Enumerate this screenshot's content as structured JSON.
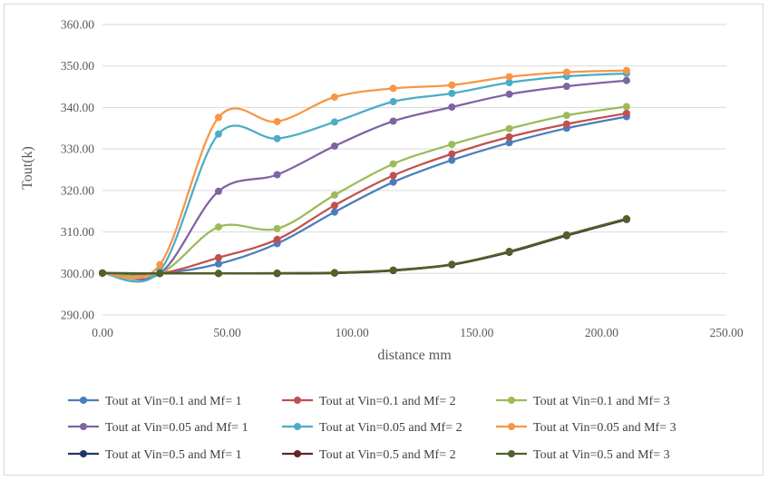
{
  "chart_data": {
    "type": "line",
    "xlabel": "distance mm",
    "ylabel": "Tout(k)",
    "xlim": [
      0,
      250
    ],
    "ylim": [
      290,
      360
    ],
    "x_ticks": [
      "0.00",
      "50.00",
      "100.00",
      "150.00",
      "200.00",
      "250.00"
    ],
    "y_ticks": [
      "290.00",
      "300.00",
      "310.00",
      "320.00",
      "330.00",
      "340.00",
      "350.00",
      "360.00"
    ],
    "grid": "horizontal",
    "legend_position": "bottom",
    "x": [
      0,
      23,
      46.5,
      70,
      93,
      116.5,
      140,
      163,
      186,
      210
    ],
    "series": [
      {
        "name": "Tout at Vin=0.1 and Mf= 1",
        "color": "#4a7ebb",
        "values": [
          300.1,
          300.0,
          302.3,
          307.2,
          314.8,
          322.0,
          327.3,
          331.5,
          335.0,
          337.8
        ]
      },
      {
        "name": "Tout at Vin=0.1 and Mf= 2",
        "color": "#c0504d",
        "values": [
          300.1,
          300.0,
          303.8,
          308.2,
          316.4,
          323.6,
          328.8,
          332.9,
          336.0,
          338.6
        ]
      },
      {
        "name": "Tout at Vin=0.1 and Mf= 3",
        "color": "#9bbb59",
        "values": [
          300.1,
          300.0,
          311.2,
          310.8,
          318.9,
          326.4,
          331.1,
          334.9,
          338.1,
          340.2
        ]
      },
      {
        "name": "Tout at Vin=0.05 and Mf= 1",
        "color": "#7f63a2",
        "values": [
          300.1,
          300.0,
          319.8,
          323.8,
          330.7,
          336.7,
          340.1,
          343.2,
          345.1,
          346.5
        ]
      },
      {
        "name": "Tout at Vin=0.05 and Mf= 2",
        "color": "#4bacc6",
        "values": [
          300.1,
          300.6,
          333.6,
          332.5,
          336.5,
          341.4,
          343.4,
          346.0,
          347.5,
          348.2
        ]
      },
      {
        "name": "Tout at Vin=0.05 and Mf= 3",
        "color": "#f79646",
        "values": [
          300.1,
          302.1,
          337.6,
          336.6,
          342.5,
          344.6,
          345.4,
          347.4,
          348.5,
          348.9
        ]
      },
      {
        "name": "Tout at Vin=0.5 and Mf= 1",
        "color": "#1f3864",
        "values": [
          300.1,
          300.0,
          300.0,
          300.0,
          300.1,
          300.7,
          302.1,
          305.1,
          309.1,
          313.0
        ]
      },
      {
        "name": "Tout at Vin=0.5 and Mf= 2",
        "color": "#632523",
        "values": [
          300.1,
          300.0,
          300.0,
          300.0,
          300.1,
          300.7,
          302.1,
          305.2,
          309.2,
          313.1
        ]
      },
      {
        "name": "Tout at Vin=0.5 and Mf= 3",
        "color": "#4f6228",
        "values": [
          300.1,
          300.0,
          300.0,
          300.1,
          300.2,
          300.8,
          302.2,
          305.3,
          309.3,
          313.2
        ]
      }
    ]
  }
}
